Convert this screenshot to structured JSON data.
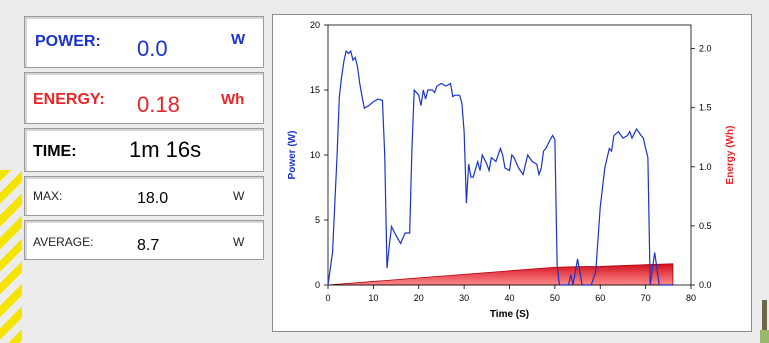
{
  "colors": {
    "power": "#1a33cc",
    "energy": "#e8262a",
    "background": "#ececec"
  },
  "power": {
    "label": "POWER:",
    "value": "0.0",
    "unit": "W"
  },
  "energy": {
    "label": "ENERGY:",
    "value": "0.18",
    "unit": "Wh"
  },
  "time": {
    "label": "TIME:",
    "value": "1m 16s"
  },
  "max": {
    "label": "MAX:",
    "value": "18.0",
    "unit": "W"
  },
  "average": {
    "label": "AVERAGE:",
    "value": "8.7",
    "unit": "W"
  },
  "chart_data": {
    "type": "line",
    "xlabel": "Time (S)",
    "ylabel": "Power (W)",
    "y2label": "Energy (Wh)",
    "xlim": [
      0,
      80
    ],
    "ylim": [
      0,
      20
    ],
    "y2lim": [
      0,
      2.2
    ],
    "xticks": [
      0,
      10,
      20,
      30,
      40,
      50,
      60,
      70,
      80
    ],
    "yticks": [
      0,
      5,
      10,
      15,
      20
    ],
    "y2ticks": [
      0.0,
      0.5,
      1.0,
      1.5,
      2.0
    ],
    "y2ticklabels": [
      "0.0",
      "0.5",
      "1.0",
      "1.5",
      "2.0"
    ],
    "grid": false,
    "series": [
      {
        "axis": "left",
        "x": [
          0,
          1,
          2,
          2.5,
          3,
          3.5,
          4,
          4.5,
          5,
          5.5,
          6,
          6.5,
          7,
          7.5,
          8,
          9,
          10,
          11,
          12,
          12.5,
          13,
          13.5,
          14,
          15,
          16,
          17,
          18,
          18.5,
          19,
          20,
          20.5,
          21,
          21.5,
          22,
          23,
          23.5,
          24,
          25,
          26,
          27,
          27.5,
          28,
          29,
          29.5,
          30,
          30.5,
          31,
          31.5,
          32,
          33,
          33.5,
          34,
          35,
          35.5,
          36,
          37,
          38,
          38.5,
          39,
          40,
          40.5,
          41,
          42,
          43,
          44,
          45,
          46,
          46.5,
          47,
          47.5,
          48,
          49,
          49.5,
          50,
          50.5,
          51,
          51.5,
          52,
          53,
          53.5,
          54,
          55,
          56,
          57,
          58,
          59,
          60,
          61,
          62,
          62.5,
          63,
          64,
          65,
          66,
          66.5,
          67,
          68,
          69,
          69.5,
          70,
          70.5,
          71,
          72,
          73,
          74,
          75,
          76
        ],
        "values": [
          0,
          2.5,
          10,
          14.5,
          16,
          17.2,
          18,
          17.8,
          18,
          17.3,
          17.5,
          16.8,
          15.5,
          14.5,
          13.6,
          13.8,
          14.1,
          14.3,
          14.2,
          10,
          1.3,
          3,
          4.5,
          3.8,
          3.2,
          4,
          4,
          10.5,
          15,
          14.6,
          13.8,
          15,
          14.3,
          15,
          15,
          14.8,
          15.3,
          15.5,
          15.3,
          15.5,
          14.5,
          14.6,
          14.6,
          14,
          11.8,
          6.3,
          9.3,
          8.3,
          8.3,
          9.5,
          8.8,
          10,
          9.3,
          8.8,
          9.8,
          9.5,
          10.5,
          10,
          9,
          8.8,
          10,
          9.8,
          9,
          8.5,
          10,
          9.5,
          9.3,
          8.5,
          9,
          10.3,
          10.5,
          11.2,
          11.5,
          11.2,
          1.5,
          0,
          0,
          0,
          0,
          0.8,
          0,
          2,
          0,
          0,
          0,
          1,
          6,
          9,
          10.5,
          10.3,
          11.5,
          11.8,
          11.3,
          11.5,
          11.8,
          11.3,
          12,
          11.5,
          11.3,
          10.5,
          9.8,
          0,
          2.5,
          0,
          0,
          0,
          0
        ]
      },
      {
        "axis": "right",
        "x": [
          0,
          10,
          20,
          30,
          40,
          50,
          55,
          60,
          70,
          76
        ],
        "values": [
          0,
          0.03,
          0.06,
          0.09,
          0.12,
          0.15,
          0.155,
          0.157,
          0.172,
          0.18
        ]
      }
    ]
  }
}
